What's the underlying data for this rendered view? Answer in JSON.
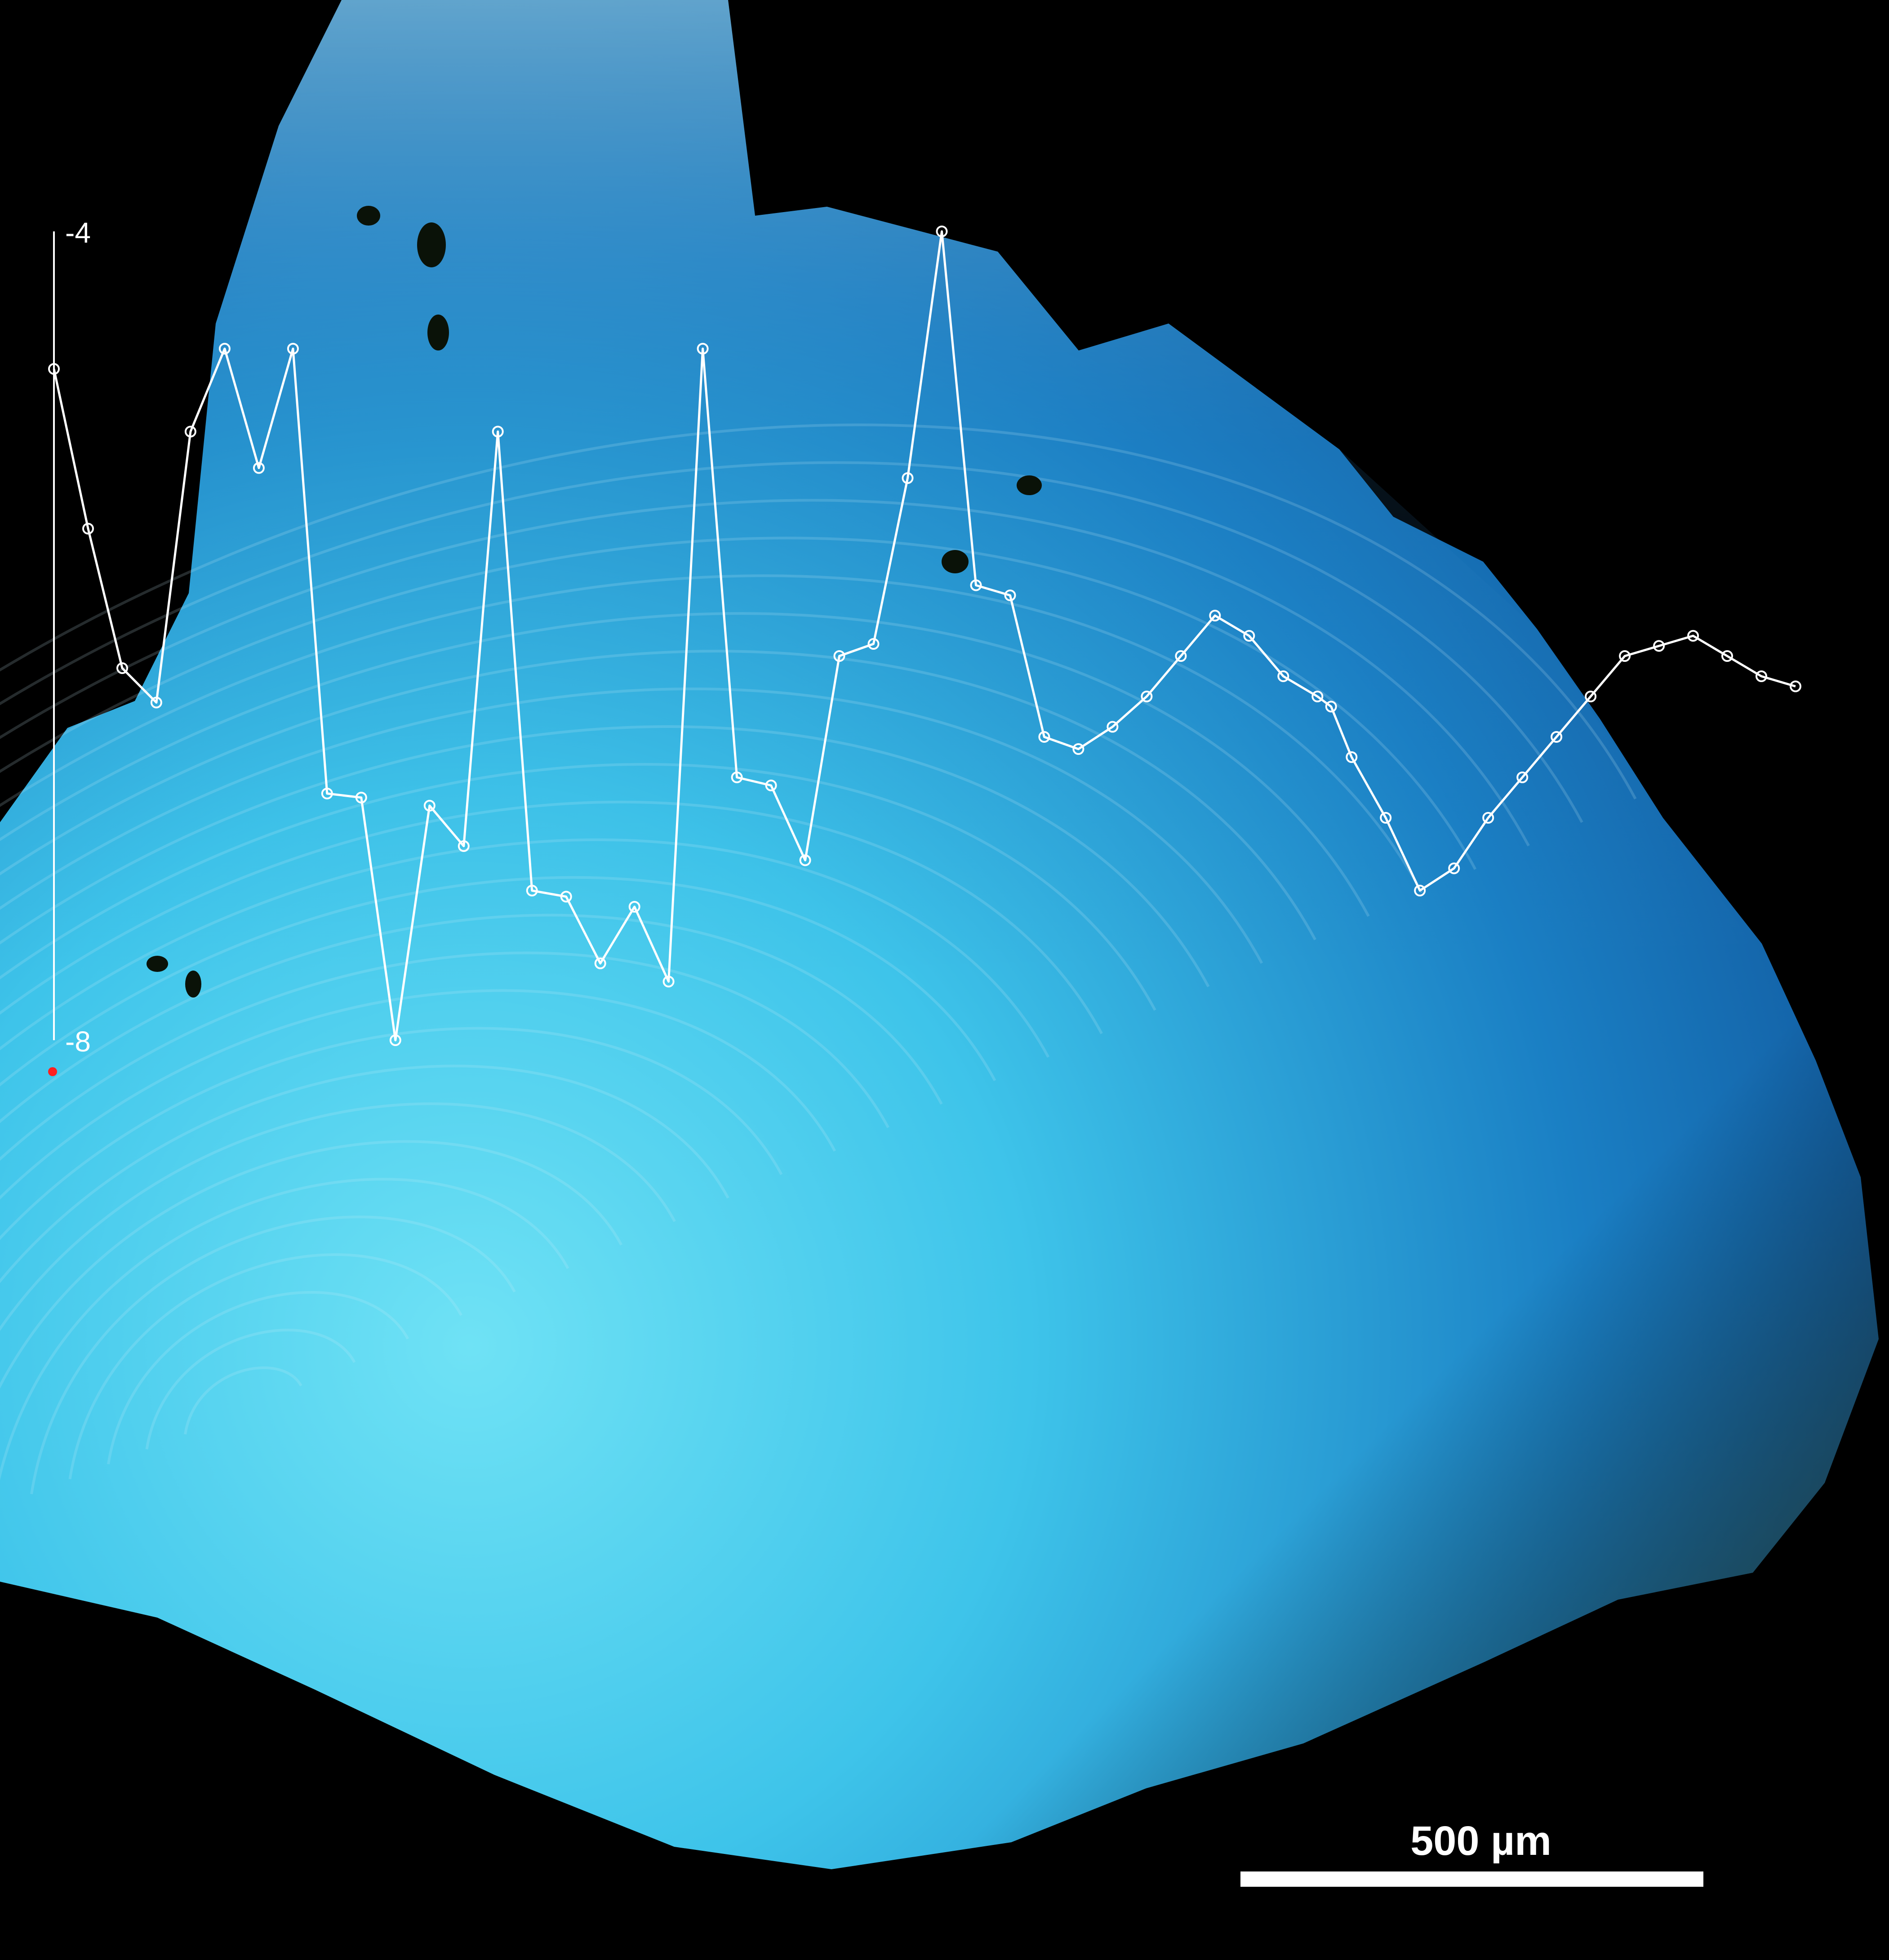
{
  "colors": {
    "background": "#000000",
    "specimen_deep": "#1a6fb8",
    "specimen_light": "#3ec4ea",
    "specimen_pale": "#9fd6e8",
    "rim_green": "#3a4a1c",
    "profile": "#ffffff",
    "start_marker": "#ff2020"
  },
  "chart_data": {
    "type": "line",
    "y_ticks": [
      "-4",
      "-8"
    ],
    "ylim": [
      -8,
      -4
    ],
    "x": [
      0,
      1,
      2,
      3,
      4,
      5,
      6,
      7,
      8,
      9,
      10,
      11,
      12,
      13,
      14,
      15,
      16,
      17,
      18,
      19,
      20,
      21,
      22,
      23,
      24,
      25,
      26,
      27,
      28,
      29,
      30,
      31,
      32,
      33,
      34,
      35,
      36,
      37,
      37.4,
      38,
      39,
      40,
      41,
      42,
      43,
      44,
      45,
      46,
      47,
      48,
      49,
      50,
      51
    ],
    "values": [
      -4.68,
      -5.47,
      -6.16,
      -6.33,
      -4.99,
      -4.58,
      -5.17,
      -4.58,
      -6.78,
      -6.8,
      -8.0,
      -6.84,
      -7.04,
      -4.99,
      -7.26,
      -7.29,
      -7.62,
      -7.34,
      -7.71,
      -4.58,
      -6.7,
      -6.74,
      -7.11,
      -6.1,
      -6.04,
      -5.22,
      -4.0,
      -5.75,
      -5.8,
      -6.5,
      -6.56,
      -6.45,
      -6.3,
      -6.1,
      -5.9,
      -6.0,
      -6.2,
      -6.3,
      -6.35,
      -6.6,
      -6.9,
      -7.26,
      -7.15,
      -6.9,
      -6.7,
      -6.5,
      -6.3,
      -6.1,
      -6.05,
      -6.0,
      -6.1,
      -6.2,
      -6.25
    ],
    "grid": false,
    "legend": "none"
  },
  "scale_bar": {
    "label": "500 µm"
  }
}
